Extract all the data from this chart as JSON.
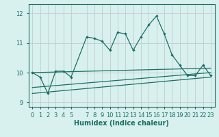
{
  "xlabel": "Humidex (Indice chaleur)",
  "bg_color": "#d8f0ee",
  "line_color": "#1a6e65",
  "grid_color": "#c8d8d5",
  "xlim": [
    -0.5,
    23.5
  ],
  "ylim": [
    8.85,
    12.3
  ],
  "yticks": [
    9,
    10,
    11,
    12
  ],
  "xticks": [
    0,
    1,
    2,
    3,
    4,
    5,
    7,
    8,
    9,
    10,
    11,
    12,
    13,
    14,
    15,
    16,
    17,
    18,
    19,
    20,
    21,
    22,
    23
  ],
  "main_x": [
    0,
    1,
    2,
    3,
    4,
    5,
    7,
    8,
    9,
    10,
    11,
    12,
    13,
    14,
    15,
    16,
    17,
    18,
    19,
    20,
    21,
    22,
    23
  ],
  "main_y": [
    10.0,
    9.85,
    9.3,
    10.05,
    10.05,
    9.85,
    11.2,
    11.15,
    11.05,
    10.75,
    11.35,
    11.3,
    10.75,
    11.2,
    11.6,
    11.9,
    11.3,
    10.6,
    10.25,
    9.9,
    9.9,
    10.25,
    9.9
  ],
  "flat_line_x": [
    0,
    23
  ],
  "flat_line_y": [
    10.0,
    10.15
  ],
  "trend1_x": [
    0,
    23
  ],
  "trend1_y": [
    9.5,
    10.0
  ],
  "trend2_x": [
    0,
    23
  ],
  "trend2_y": [
    9.3,
    9.85
  ]
}
